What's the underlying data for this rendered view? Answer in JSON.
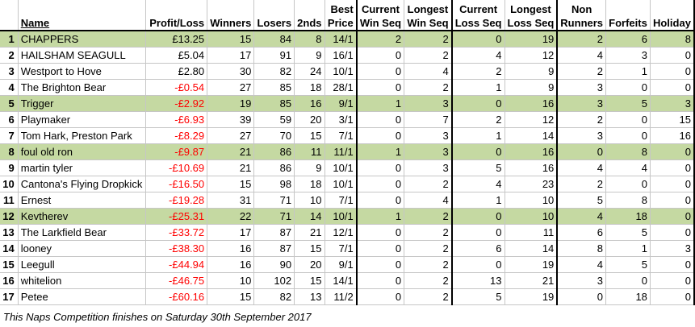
{
  "headers": {
    "rank": "",
    "name": "Name",
    "profit": "Profit/Loss",
    "winners": "Winners",
    "losers": "Losers",
    "seconds": "2nds",
    "best_price": [
      "Best",
      "Price"
    ],
    "current_win": [
      "Current",
      "Win Seq"
    ],
    "longest_win": [
      "Longest",
      "Win Seq"
    ],
    "current_loss": [
      "Current",
      "Loss Seq"
    ],
    "longest_loss": [
      "Longest",
      "Loss Seq"
    ],
    "non_runners": [
      "Non",
      "Runners"
    ],
    "forfeits": "Forfeits",
    "holiday": "Holiday"
  },
  "rows": [
    {
      "rank": "1",
      "name": "CHAPPERS",
      "profit": "£13.25",
      "winners": "15",
      "losers": "84",
      "seconds": "8",
      "best": "14/1",
      "cws": "2",
      "lws": "2",
      "cls": "0",
      "lls": "19",
      "nr": "2",
      "forfeits": "6",
      "holiday": "8",
      "highlight": true,
      "negative": false
    },
    {
      "rank": "2",
      "name": "HAILSHAM SEAGULL",
      "profit": "£5.04",
      "winners": "17",
      "losers": "91",
      "seconds": "9",
      "best": "16/1",
      "cws": "0",
      "lws": "2",
      "cls": "4",
      "lls": "12",
      "nr": "4",
      "forfeits": "3",
      "holiday": "0",
      "highlight": false,
      "negative": false
    },
    {
      "rank": "3",
      "name": "Westport to Hove",
      "profit": "£2.80",
      "winners": "30",
      "losers": "82",
      "seconds": "24",
      "best": "10/1",
      "cws": "0",
      "lws": "4",
      "cls": "2",
      "lls": "9",
      "nr": "2",
      "forfeits": "1",
      "holiday": "0",
      "highlight": false,
      "negative": false
    },
    {
      "rank": "4",
      "name": "The Brighton Bear",
      "profit": "-£0.54",
      "winners": "27",
      "losers": "85",
      "seconds": "18",
      "best": "28/1",
      "cws": "0",
      "lws": "2",
      "cls": "1",
      "lls": "9",
      "nr": "3",
      "forfeits": "0",
      "holiday": "0",
      "highlight": false,
      "negative": true
    },
    {
      "rank": "5",
      "name": "Trigger",
      "profit": "-£2.92",
      "winners": "19",
      "losers": "85",
      "seconds": "16",
      "best": "9/1",
      "cws": "1",
      "lws": "3",
      "cls": "0",
      "lls": "16",
      "nr": "3",
      "forfeits": "5",
      "holiday": "3",
      "highlight": true,
      "negative": true
    },
    {
      "rank": "6",
      "name": "Playmaker",
      "profit": "-£6.93",
      "winners": "39",
      "losers": "59",
      "seconds": "20",
      "best": "3/1",
      "cws": "0",
      "lws": "7",
      "cls": "2",
      "lls": "12",
      "nr": "2",
      "forfeits": "0",
      "holiday": "15",
      "highlight": false,
      "negative": true
    },
    {
      "rank": "7",
      "name": "Tom Hark, Preston Park",
      "profit": "-£8.29",
      "winners": "27",
      "losers": "70",
      "seconds": "15",
      "best": "7/1",
      "cws": "0",
      "lws": "3",
      "cls": "1",
      "lls": "14",
      "nr": "3",
      "forfeits": "0",
      "holiday": "16",
      "highlight": false,
      "negative": true
    },
    {
      "rank": "8",
      "name": "foul old ron",
      "profit": "-£9.87",
      "winners": "21",
      "losers": "86",
      "seconds": "11",
      "best": "11/1",
      "cws": "1",
      "lws": "3",
      "cls": "0",
      "lls": "16",
      "nr": "0",
      "forfeits": "8",
      "holiday": "0",
      "highlight": true,
      "negative": true
    },
    {
      "rank": "9",
      "name": "martin tyler",
      "profit": "-£10.69",
      "winners": "21",
      "losers": "86",
      "seconds": "9",
      "best": "10/1",
      "cws": "0",
      "lws": "3",
      "cls": "5",
      "lls": "16",
      "nr": "4",
      "forfeits": "4",
      "holiday": "0",
      "highlight": false,
      "negative": true
    },
    {
      "rank": "10",
      "name": "Cantona's Flying Dropkick",
      "profit": "-£16.50",
      "winners": "15",
      "losers": "98",
      "seconds": "18",
      "best": "10/1",
      "cws": "0",
      "lws": "2",
      "cls": "4",
      "lls": "23",
      "nr": "2",
      "forfeits": "0",
      "holiday": "0",
      "highlight": false,
      "negative": true
    },
    {
      "rank": "11",
      "name": "Ernest",
      "profit": "-£19.28",
      "winners": "31",
      "losers": "71",
      "seconds": "10",
      "best": "7/1",
      "cws": "0",
      "lws": "4",
      "cls": "1",
      "lls": "10",
      "nr": "5",
      "forfeits": "8",
      "holiday": "0",
      "highlight": false,
      "negative": true
    },
    {
      "rank": "12",
      "name": "Kevtherev",
      "profit": "-£25.31",
      "winners": "22",
      "losers": "71",
      "seconds": "14",
      "best": "10/1",
      "cws": "1",
      "lws": "2",
      "cls": "0",
      "lls": "10",
      "nr": "4",
      "forfeits": "18",
      "holiday": "0",
      "highlight": true,
      "negative": true
    },
    {
      "rank": "13",
      "name": "The Larkfield Bear",
      "profit": "-£33.72",
      "winners": "17",
      "losers": "87",
      "seconds": "21",
      "best": "12/1",
      "cws": "0",
      "lws": "2",
      "cls": "0",
      "lls": "11",
      "nr": "6",
      "forfeits": "5",
      "holiday": "0",
      "highlight": false,
      "negative": true
    },
    {
      "rank": "14",
      "name": "looney",
      "profit": "-£38.30",
      "winners": "16",
      "losers": "87",
      "seconds": "15",
      "best": "7/1",
      "cws": "0",
      "lws": "2",
      "cls": "6",
      "lls": "14",
      "nr": "8",
      "forfeits": "1",
      "holiday": "3",
      "highlight": false,
      "negative": true
    },
    {
      "rank": "15",
      "name": "Leegull",
      "profit": "-£44.94",
      "winners": "16",
      "losers": "90",
      "seconds": "20",
      "best": "9/1",
      "cws": "0",
      "lws": "2",
      "cls": "0",
      "lls": "19",
      "nr": "4",
      "forfeits": "5",
      "holiday": "0",
      "highlight": false,
      "negative": true
    },
    {
      "rank": "16",
      "name": "whitelion",
      "profit": "-£46.75",
      "winners": "10",
      "losers": "102",
      "seconds": "15",
      "best": "14/1",
      "cws": "0",
      "lws": "2",
      "cls": "13",
      "lls": "21",
      "nr": "3",
      "forfeits": "0",
      "holiday": "0",
      "highlight": false,
      "negative": true
    },
    {
      "rank": "17",
      "name": "Petee",
      "profit": "-£60.16",
      "winners": "15",
      "losers": "82",
      "seconds": "13",
      "best": "11/2",
      "cws": "0",
      "lws": "2",
      "cls": "5",
      "lls": "19",
      "nr": "0",
      "forfeits": "18",
      "holiday": "0",
      "highlight": false,
      "negative": true
    }
  ],
  "footer": "This Naps Competition finishes on Saturday 30th September 2017"
}
